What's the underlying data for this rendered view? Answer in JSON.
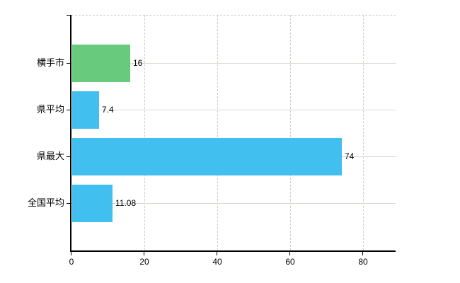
{
  "chart": {
    "background_color": "#ffffff",
    "axis_color": "#000000",
    "horizontal_grid_color": "#d8d8d2",
    "vertical_grid_color": "#cfcfca",
    "text_color": "#000000"
  },
  "chart_data": {
    "type": "bar",
    "orientation": "horizontal",
    "title": "",
    "categories": [
      "横手市",
      "県平均",
      "県最大",
      "全国平均"
    ],
    "values": [
      16,
      7.4,
      74,
      11.08
    ],
    "value_labels": [
      "16",
      "7.4",
      "74",
      "11.08"
    ],
    "bar_colors": [
      "#68ca7c",
      "#41bfef",
      "#41bfef",
      "#41bfef"
    ],
    "x_ticks": [
      0,
      20,
      40,
      60,
      80
    ],
    "x_tick_labels": [
      "0",
      "20",
      "40",
      "60",
      "80"
    ],
    "xlim": [
      0,
      89
    ],
    "grid": true,
    "legend": false
  }
}
